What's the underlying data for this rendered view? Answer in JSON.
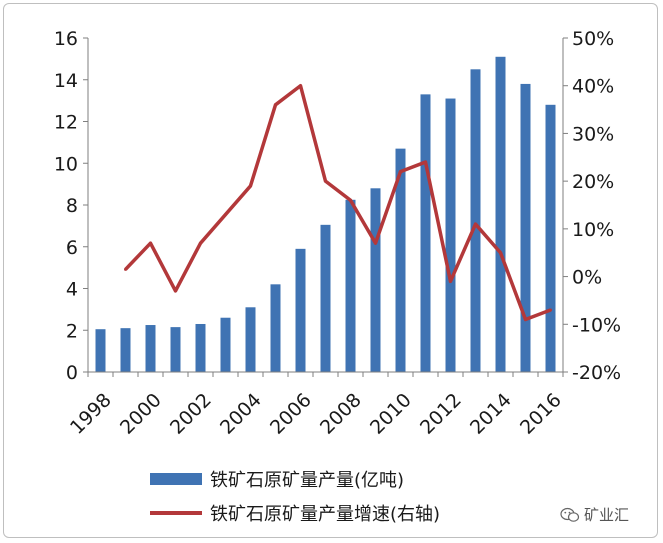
{
  "chart_data": {
    "type": "bar",
    "categories": [
      "1998",
      "1999",
      "2000",
      "2001",
      "2002",
      "2003",
      "2004",
      "2005",
      "2006",
      "2007",
      "2008",
      "2009",
      "2010",
      "2011",
      "2012",
      "2013",
      "2014",
      "2015",
      "2016"
    ],
    "x_tick_labels": [
      "1998",
      "2000",
      "2002",
      "2004",
      "2006",
      "2008",
      "2010",
      "2012",
      "2014",
      "2016"
    ],
    "series": [
      {
        "name": "铁矿石原矿量产量(亿吨)",
        "type": "bar",
        "axis": "left",
        "color": "#3f73b3",
        "values": [
          2.05,
          2.1,
          2.25,
          2.15,
          2.3,
          2.6,
          3.1,
          4.2,
          5.9,
          7.05,
          8.25,
          8.8,
          10.7,
          13.3,
          13.1,
          14.5,
          15.1,
          13.8,
          12.8
        ]
      },
      {
        "name": "铁矿石原矿量产量增速(右轴)",
        "type": "line",
        "axis": "right",
        "color": "#b3383a",
        "values": [
          null,
          1.5,
          7,
          -3,
          7,
          13,
          19,
          36,
          40,
          20,
          16,
          7,
          22,
          24,
          -1,
          11,
          5,
          -9,
          -7
        ]
      }
    ],
    "y_left": {
      "min": 0,
      "max": 16,
      "ticks": [
        "0",
        "2",
        "4",
        "6",
        "8",
        "10",
        "12",
        "14",
        "16"
      ]
    },
    "y_right": {
      "min": -20,
      "max": 50,
      "ticks": [
        "-20%",
        "-10%",
        "0%",
        "10%",
        "20%",
        "30%",
        "40%",
        "50%"
      ]
    },
    "legend_position": "bottom",
    "grid": false
  },
  "legend": {
    "bar_label": "铁矿石原矿量产量(亿吨)",
    "line_label": "铁矿石原矿量产量增速(右轴)"
  },
  "watermark": {
    "text": "矿业汇",
    "icon": "wechat-icon"
  }
}
